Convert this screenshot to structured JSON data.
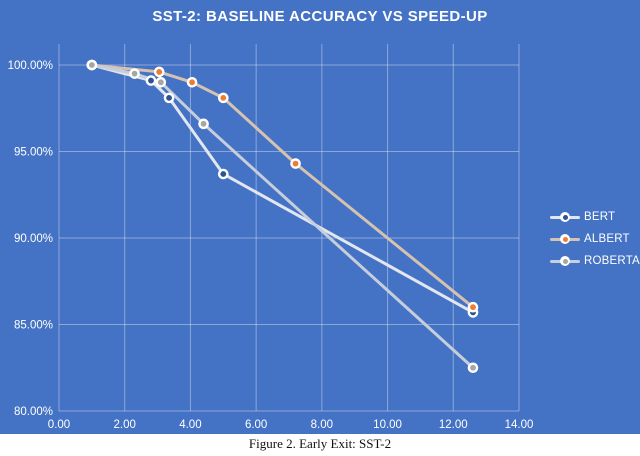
{
  "title": "SST-2: BASELINE ACCURACY VS SPEED-UP",
  "caption": "Figure 2. Early Exit: SST-2",
  "colors": {
    "chart_background": "#4472C4",
    "gridline": "rgba(255,255,255,0.38)",
    "axis_text": "#ffffff",
    "title_text": "#ffffff",
    "caption_text": "#111111"
  },
  "chart_data": {
    "type": "line",
    "title": "SST-2: BASELINE ACCURACY VS SPEED-UP",
    "xlabel": "",
    "ylabel": "",
    "xlim": [
      0,
      14
    ],
    "ylim": [
      80,
      101.3
    ],
    "grid": "on",
    "legend_position": "right",
    "x_tick_values": [
      0,
      2,
      4,
      6,
      8,
      10,
      12,
      14
    ],
    "x_tick_labels": [
      "0.00",
      "2.00",
      "4.00",
      "6.00",
      "8.00",
      "10.00",
      "12.00",
      "14.00"
    ],
    "y_tick_values": [
      80,
      85,
      90,
      95,
      100
    ],
    "y_tick_labels": [
      "80.00%",
      "85.00%",
      "90.00%",
      "95.00%",
      "100.00%"
    ],
    "series": [
      {
        "name": "BERT",
        "line_color": "#E2E6EF",
        "marker_color": "#2E5395",
        "points": [
          [
            1.0,
            100.0
          ],
          [
            2.8,
            99.1
          ],
          [
            3.35,
            98.1
          ],
          [
            5.0,
            93.7
          ],
          [
            12.6,
            85.7
          ]
        ]
      },
      {
        "name": "ALBERT",
        "line_color": "#D5C2B0",
        "marker_color": "#ED7D31",
        "points": [
          [
            1.0,
            100.0
          ],
          [
            3.05,
            99.6
          ],
          [
            4.05,
            99.0
          ],
          [
            5.0,
            98.1
          ],
          [
            7.2,
            94.3
          ],
          [
            12.6,
            86.0
          ]
        ]
      },
      {
        "name": "ROBERTA",
        "line_color": "#C6CDDB",
        "marker_color": "#A6A6A6",
        "points": [
          [
            1.0,
            100.0
          ],
          [
            2.3,
            99.5
          ],
          [
            3.1,
            99.0
          ],
          [
            4.4,
            96.6
          ],
          [
            12.6,
            82.5
          ]
        ]
      }
    ]
  }
}
